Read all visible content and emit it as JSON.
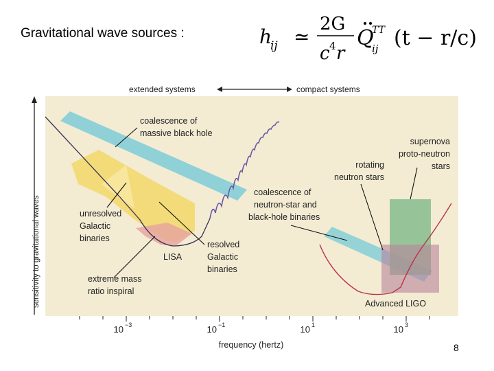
{
  "slide": {
    "title": "Gravitational wave sources :",
    "page_number": "8"
  },
  "formula": {
    "lhs": "h",
    "lhs_sub": "ij",
    "relation": "≃",
    "numerator": "2G",
    "denominator_base": "c",
    "denominator_exp": "4",
    "denominator_tail": "r",
    "q": "Q",
    "q_sup": "TT",
    "q_sub": "ij",
    "argument": "(t − r/c)"
  },
  "figure": {
    "header_left": "extended systems",
    "header_right": "compact systems",
    "y_axis_label": "sensitivity to gravitational waves",
    "x_axis_label": "frequency (hertz)",
    "x_ticks": [
      {
        "base": "10",
        "exp": "−3"
      },
      {
        "base": "10",
        "exp": "−1"
      },
      {
        "base": "10",
        "exp": "1"
      },
      {
        "base": "10",
        "exp": "3"
      }
    ],
    "labels": {
      "massive_bh": [
        "coalescence of",
        "massive black hole"
      ],
      "unresolved": [
        "unresolved",
        "Galactic",
        "binaries"
      ],
      "lisa": "LISA",
      "resolved": [
        "resolved",
        "Galactic",
        "binaries"
      ],
      "emri": [
        "extreme mass",
        "ratio inspiral"
      ],
      "ns_bh": [
        "coalescence of",
        "neutron-star and",
        "black-hole binaries"
      ],
      "rotating_ns": [
        "rotating",
        "neutron stars"
      ],
      "supernova": [
        "supernova",
        "proto-neutron",
        "stars"
      ],
      "ligo": "Advanced LIGO"
    },
    "colors": {
      "panel_bg": "#f3ecd3",
      "cyan_band": "#7ecdd8",
      "yellow": "#f2d86a",
      "pink": "#e6a3a0",
      "green": "#7fb98a",
      "mauve": "#b9839b",
      "lisa_curve": "#6b5aa6",
      "ligo_curve": "#b8324a"
    }
  }
}
